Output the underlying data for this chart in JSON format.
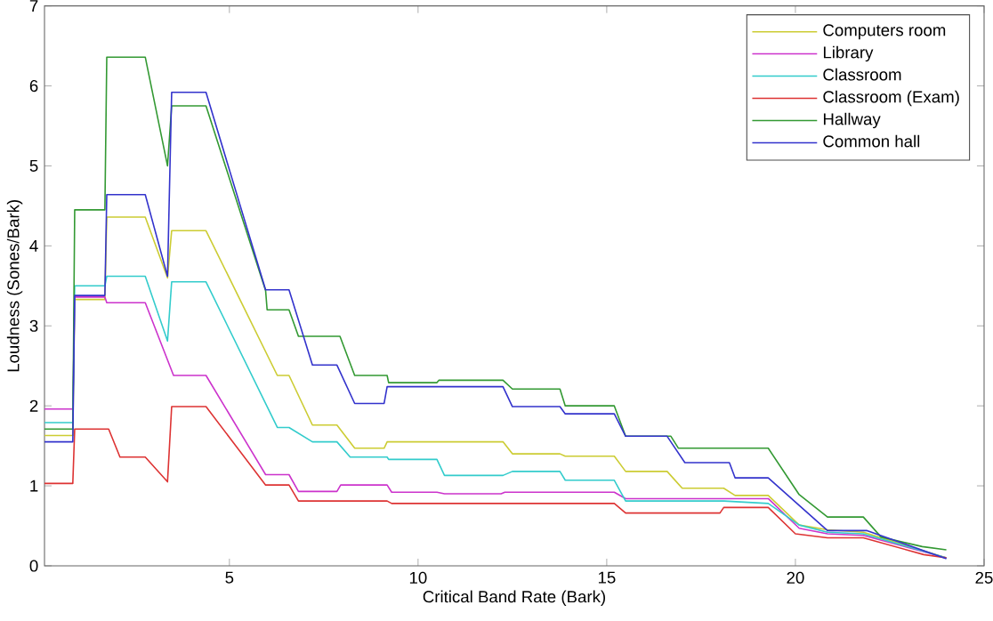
{
  "chart_data": {
    "type": "line",
    "xlabel": "Critical Band Rate (Bark)",
    "ylabel": "Loudness (Sones/Bark)",
    "xlim": [
      0.1,
      25
    ],
    "ylim": [
      0,
      7
    ],
    "xticks": [
      5,
      10,
      15,
      20,
      25
    ],
    "yticks": [
      0,
      1,
      2,
      3,
      4,
      5,
      6,
      7
    ],
    "legend": "top right",
    "grid": false,
    "marker": "none",
    "line_style": "solid",
    "series": [
      {
        "name": "Computers room",
        "color": "#cccc33",
        "x": [
          0.1,
          0.85,
          0.9,
          1.7,
          1.75,
          2.77,
          3.36,
          3.47,
          4.38,
          6.27,
          6.58,
          7.2,
          7.85,
          8.32,
          9.1,
          9.18,
          12.25,
          12.5,
          13.76,
          13.9,
          15.2,
          15.5,
          16.6,
          17.0,
          18.1,
          18.4,
          19.28,
          20.1,
          20.85,
          21.8,
          24.0
        ],
        "values": [
          1.63,
          1.63,
          3.33,
          3.33,
          4.36,
          4.36,
          3.6,
          4.19,
          4.19,
          2.38,
          2.38,
          1.76,
          1.76,
          1.47,
          1.47,
          1.55,
          1.55,
          1.4,
          1.4,
          1.37,
          1.37,
          1.18,
          1.18,
          0.97,
          0.97,
          0.88,
          0.88,
          0.51,
          0.45,
          0.42,
          0.1
        ]
      },
      {
        "name": "Library",
        "color": "#cc33cc",
        "x": [
          0.1,
          0.85,
          0.9,
          1.7,
          1.75,
          2.77,
          3.52,
          4.38,
          5.96,
          6.58,
          6.83,
          7.85,
          7.95,
          9.18,
          9.3,
          10.5,
          10.7,
          12.2,
          12.3,
          15.2,
          15.5,
          18.1,
          19.28,
          20.1,
          20.85,
          21.8,
          24.0
        ],
        "values": [
          1.96,
          1.96,
          3.36,
          3.36,
          3.29,
          3.29,
          2.38,
          2.38,
          1.14,
          1.14,
          0.93,
          0.93,
          1.01,
          1.01,
          0.92,
          0.92,
          0.9,
          0.9,
          0.92,
          0.92,
          0.84,
          0.84,
          0.84,
          0.47,
          0.4,
          0.38,
          0.1
        ]
      },
      {
        "name": "Classroom",
        "color": "#33cccc",
        "x": [
          0.1,
          0.85,
          0.9,
          1.7,
          1.75,
          2.77,
          3.36,
          3.47,
          4.38,
          6.27,
          6.58,
          7.2,
          7.85,
          8.2,
          9.18,
          9.22,
          10.5,
          10.7,
          12.25,
          12.5,
          13.76,
          13.9,
          15.2,
          15.5,
          18.1,
          19.28,
          20.1,
          20.85,
          21.8,
          24.0
        ],
        "values": [
          1.79,
          1.79,
          3.5,
          3.5,
          3.62,
          3.62,
          2.81,
          3.55,
          3.55,
          1.73,
          1.73,
          1.55,
          1.55,
          1.36,
          1.36,
          1.33,
          1.33,
          1.13,
          1.13,
          1.18,
          1.18,
          1.07,
          1.07,
          0.81,
          0.81,
          0.78,
          0.51,
          0.42,
          0.4,
          0.1
        ]
      },
      {
        "name": "Classroom (Exam)",
        "color": "#dd3333",
        "x": [
          0.1,
          0.85,
          0.9,
          1.8,
          2.1,
          2.77,
          3.36,
          3.47,
          4.38,
          5.96,
          6.58,
          6.83,
          9.18,
          9.3,
          15.2,
          15.5,
          18.0,
          18.1,
          19.28,
          20.0,
          20.85,
          21.8,
          23.4,
          24.0
        ],
        "values": [
          1.03,
          1.03,
          1.71,
          1.71,
          1.36,
          1.36,
          1.05,
          1.99,
          1.99,
          1.01,
          1.01,
          0.81,
          0.81,
          0.78,
          0.78,
          0.66,
          0.66,
          0.73,
          0.73,
          0.4,
          0.35,
          0.35,
          0.14,
          0.1
        ]
      },
      {
        "name": "Hallway",
        "color": "#339933",
        "x": [
          0.1,
          0.85,
          0.9,
          1.7,
          1.75,
          2.77,
          3.36,
          3.47,
          4.38,
          5.96,
          6.0,
          6.58,
          6.83,
          7.93,
          8.32,
          9.18,
          9.22,
          10.5,
          10.55,
          12.25,
          12.5,
          13.76,
          13.9,
          15.2,
          15.5,
          16.7,
          16.9,
          19.28,
          20.1,
          20.85,
          21.8,
          22.27,
          23.36,
          24.0
        ],
        "values": [
          1.71,
          1.71,
          4.45,
          4.45,
          6.36,
          6.36,
          5.0,
          5.75,
          5.75,
          3.44,
          3.2,
          3.2,
          2.87,
          2.87,
          2.38,
          2.38,
          2.29,
          2.29,
          2.32,
          2.32,
          2.21,
          2.21,
          2.0,
          2.0,
          1.62,
          1.62,
          1.47,
          1.47,
          0.89,
          0.61,
          0.61,
          0.36,
          0.24,
          0.2
        ]
      },
      {
        "name": "Common hall",
        "color": "#3333cc",
        "x": [
          0.1,
          0.85,
          0.9,
          1.7,
          1.75,
          2.77,
          3.36,
          3.47,
          4.38,
          5.96,
          6.58,
          7.2,
          7.85,
          8.32,
          9.1,
          9.18,
          12.25,
          12.5,
          13.76,
          13.9,
          15.2,
          15.5,
          16.6,
          17.07,
          18.25,
          18.4,
          19.28,
          20.85,
          21.9,
          24.0
        ],
        "values": [
          1.55,
          1.55,
          3.38,
          3.38,
          4.64,
          4.64,
          3.62,
          5.92,
          5.92,
          3.45,
          3.45,
          2.51,
          2.51,
          2.03,
          2.03,
          2.24,
          2.24,
          1.99,
          1.99,
          1.9,
          1.9,
          1.62,
          1.62,
          1.29,
          1.29,
          1.1,
          1.1,
          0.44,
          0.44,
          0.09
        ]
      }
    ]
  }
}
